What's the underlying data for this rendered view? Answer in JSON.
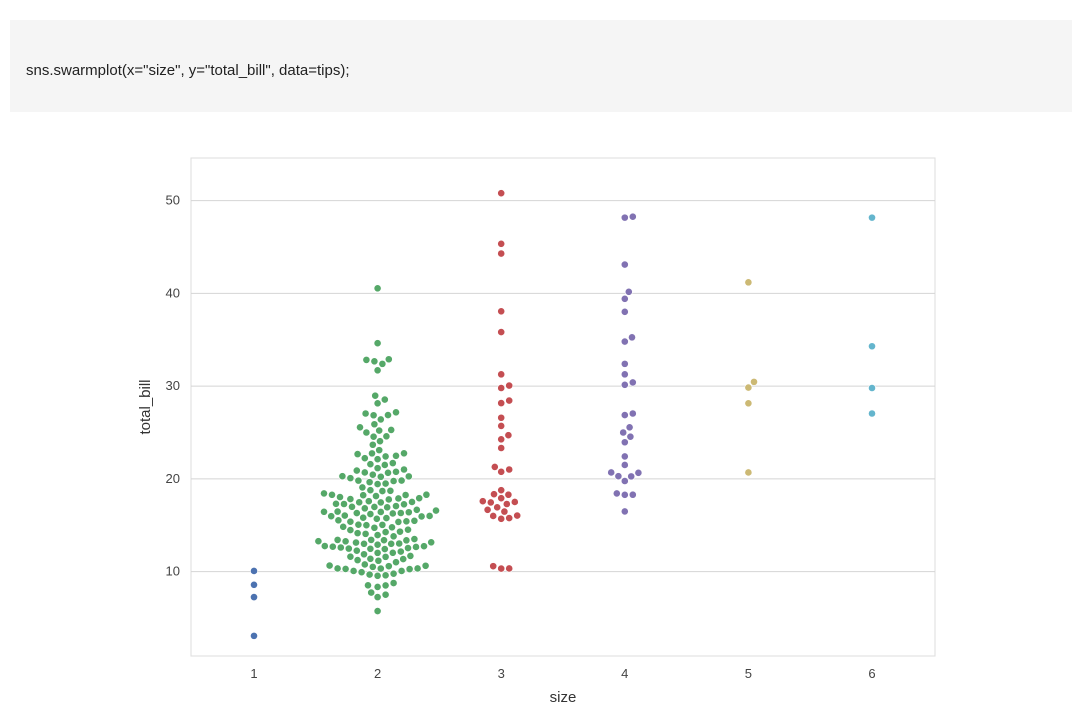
{
  "code_cell": {
    "text": "sns.swarmplot(x=\"size\", y=\"total_bill\", data=tips);"
  },
  "chart_data": {
    "type": "scatter",
    "subtype": "swarm",
    "title": "",
    "xlabel": "size",
    "ylabel": "total_bill",
    "categories": [
      "1",
      "2",
      "3",
      "4",
      "5",
      "6"
    ],
    "ylim": [
      0.9,
      54.6
    ],
    "yticks": [
      10,
      20,
      30,
      40,
      50
    ],
    "grid": "horizontal",
    "series": [
      {
        "category": "1",
        "color": "#4c72b0",
        "values": [
          3.07,
          7.25,
          8.58,
          10.07
        ]
      },
      {
        "category": "2",
        "color": "#55a868",
        "values": [
          5.75,
          7.25,
          7.51,
          7.74,
          8.35,
          8.51,
          8.52,
          8.77,
          9.55,
          9.6,
          9.68,
          9.78,
          9.94,
          10.07,
          10.07,
          10.27,
          10.29,
          10.33,
          10.34,
          10.34,
          10.51,
          10.59,
          10.63,
          10.65,
          10.77,
          11.02,
          11.17,
          11.24,
          11.35,
          11.38,
          11.59,
          11.61,
          11.69,
          11.87,
          12.02,
          12.03,
          12.16,
          12.26,
          12.43,
          12.46,
          12.48,
          12.54,
          12.6,
          12.66,
          12.69,
          12.74,
          12.76,
          12.9,
          13.0,
          13.0,
          13.03,
          13.13,
          13.16,
          13.27,
          13.28,
          13.37,
          13.39,
          13.42,
          13.42,
          13.51,
          13.81,
          13.94,
          14.07,
          14.15,
          14.26,
          14.31,
          14.48,
          14.52,
          14.73,
          14.78,
          14.83,
          15.01,
          15.04,
          15.06,
          15.36,
          15.38,
          15.42,
          15.48,
          15.53,
          15.69,
          15.77,
          15.81,
          15.95,
          15.98,
          16.0,
          16.04,
          16.21,
          16.27,
          16.31,
          16.32,
          16.4,
          16.43,
          16.45,
          16.47,
          16.58,
          16.66,
          16.82,
          16.93,
          16.97,
          16.99,
          17.07,
          17.26,
          17.29,
          17.31,
          17.46,
          17.47,
          17.51,
          17.59,
          17.78,
          17.82,
          17.89,
          17.92,
          18.04,
          18.15,
          18.24,
          18.26,
          18.28,
          18.29,
          18.43,
          18.69,
          18.71,
          18.78,
          19.08,
          19.44,
          19.49,
          19.65,
          19.77,
          19.81,
          19.82,
          20.08,
          20.23,
          20.27,
          20.29,
          20.45,
          20.65,
          20.69,
          20.76,
          20.9,
          21.01,
          21.16,
          21.5,
          21.58,
          21.7,
          22.12,
          22.23,
          22.42,
          22.49,
          22.67,
          22.75,
          22.76,
          23.1,
          23.68,
          24.06,
          24.55,
          24.59,
          25.0,
          25.21,
          25.28,
          25.56,
          25.89,
          26.41,
          26.86,
          26.88,
          27.05,
          27.18,
          28.15,
          28.55,
          28.97,
          31.71,
          32.4,
          32.68,
          32.83,
          32.9,
          34.63,
          40.55
        ]
      },
      {
        "category": "3",
        "color": "#c44e52",
        "values": [
          10.33,
          10.34,
          10.59,
          15.69,
          15.77,
          16.0,
          16.04,
          16.47,
          16.66,
          16.93,
          17.29,
          17.46,
          17.51,
          17.59,
          17.92,
          18.29,
          18.35,
          18.78,
          20.76,
          21.01,
          21.29,
          23.33,
          24.27,
          24.71,
          25.71,
          26.59,
          28.17,
          28.44,
          29.8,
          30.06,
          31.27,
          35.83,
          38.07,
          44.3,
          45.35,
          50.81
        ]
      },
      {
        "category": "4",
        "color": "#8172b2",
        "values": [
          16.49,
          18.28,
          18.29,
          18.43,
          19.77,
          20.27,
          20.29,
          20.65,
          20.69,
          21.5,
          22.42,
          23.95,
          24.55,
          25.0,
          25.56,
          26.88,
          27.05,
          30.14,
          30.4,
          31.27,
          32.4,
          34.81,
          35.26,
          38.01,
          39.42,
          40.17,
          43.11,
          48.17,
          48.27
        ]
      },
      {
        "category": "5",
        "color": "#ccb974",
        "values": [
          20.69,
          28.15,
          29.85,
          30.46,
          41.19
        ]
      },
      {
        "category": "6",
        "color": "#64b5cd",
        "values": [
          27.05,
          29.8,
          34.3,
          48.17
        ]
      }
    ]
  }
}
